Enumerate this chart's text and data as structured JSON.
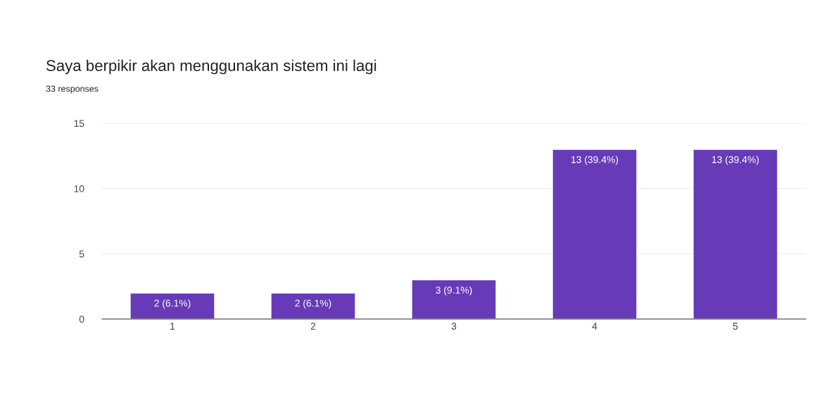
{
  "chart_data": {
    "type": "bar",
    "title": "Saya berpikir akan menggunakan sistem ini lagi",
    "subtitle": "33 responses",
    "categories": [
      "1",
      "2",
      "3",
      "4",
      "5"
    ],
    "values": [
      2,
      2,
      3,
      13,
      13
    ],
    "value_labels": [
      "2 (6.1%)",
      "2 (6.1%)",
      "3 (9.1%)",
      "13 (39.4%)",
      "13 (39.4%)"
    ],
    "color": "#673ab7",
    "ylim": [
      0,
      15
    ],
    "yticks": [
      0,
      5,
      10,
      15
    ],
    "grid": "y",
    "legend": false
  }
}
